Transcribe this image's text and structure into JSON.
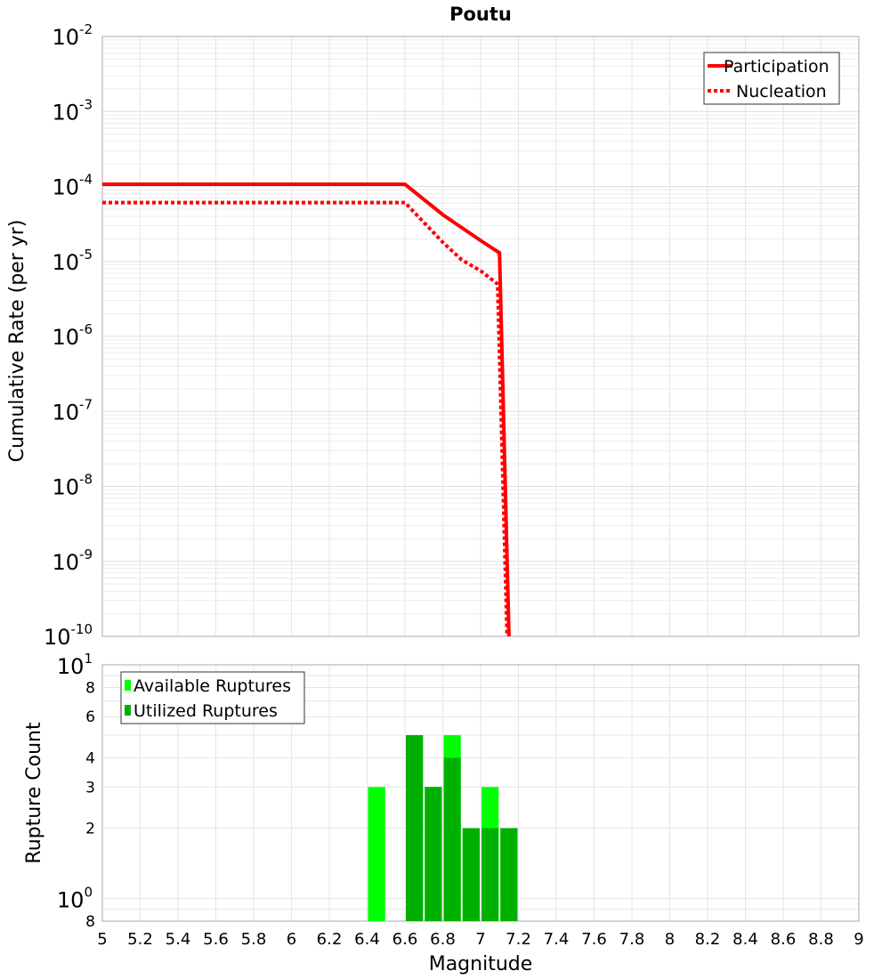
{
  "chart_data": [
    {
      "type": "line",
      "title": "Poutu",
      "xlabel": "Magnitude",
      "ylabel": "Cumulative Rate (per yr)",
      "xlim": [
        5,
        9
      ],
      "ylim": [
        1e-10,
        0.01
      ],
      "yscale": "log",
      "grid": true,
      "legend": "top-right",
      "series": [
        {
          "name": "Participation",
          "style": "solid",
          "color": "#ff0000",
          "x": [
            5.0,
            6.6,
            6.8,
            7.0,
            7.1,
            7.15
          ],
          "y": [
            0.000107,
            0.000107,
            4.2e-05,
            1.9e-05,
            1.3e-05,
            1e-10
          ]
        },
        {
          "name": "Nucleation",
          "style": "dotted",
          "color": "#ff0000",
          "x": [
            5.0,
            6.6,
            6.8,
            6.9,
            7.0,
            7.09,
            7.14
          ],
          "y": [
            6.1e-05,
            6.1e-05,
            1.8e-05,
            1.05e-05,
            7.5e-06,
            5e-06,
            1e-10
          ]
        }
      ],
      "yticks": [
        -10,
        -9,
        -8,
        -7,
        -6,
        -5,
        -4,
        -3,
        -2
      ]
    },
    {
      "type": "bar",
      "xlabel": "Magnitude",
      "ylabel": "Rupture Count",
      "xlim": [
        5,
        9
      ],
      "ylim": [
        0.8,
        10
      ],
      "yscale": "log",
      "grid": true,
      "legend": "top-left",
      "bin_width": 0.1,
      "x": [
        6.45,
        6.65,
        6.75,
        6.85,
        6.95,
        7.05,
        7.15
      ],
      "series": [
        {
          "name": "Available Ruptures",
          "color": "#00ff00",
          "values": [
            3,
            5,
            3,
            5,
            2,
            3,
            2
          ]
        },
        {
          "name": "Utilized Ruptures",
          "color": "#00b000",
          "values": [
            0,
            5,
            3,
            4,
            2,
            2,
            2
          ]
        }
      ],
      "ytick_labels": [
        {
          "v": 10,
          "base": "10",
          "exp": "1"
        },
        {
          "v": 8,
          "base": "8",
          "exp": ""
        },
        {
          "v": 6,
          "base": "6",
          "exp": ""
        },
        {
          "v": 4,
          "base": "4",
          "exp": ""
        },
        {
          "v": 3,
          "base": "3",
          "exp": ""
        },
        {
          "v": 2,
          "base": "2",
          "exp": ""
        },
        {
          "v": 1,
          "base": "10",
          "exp": "0"
        },
        {
          "v": 0.8,
          "base": "8",
          "exp": ""
        }
      ],
      "xticks": [
        "5",
        "5.2",
        "5.4",
        "5.6",
        "5.8",
        "6",
        "6.2",
        "6.4",
        "6.6",
        "6.8",
        "7",
        "7.2",
        "7.4",
        "7.6",
        "7.8",
        "8",
        "8.2",
        "8.4",
        "8.6",
        "8.8",
        "9"
      ]
    }
  ]
}
